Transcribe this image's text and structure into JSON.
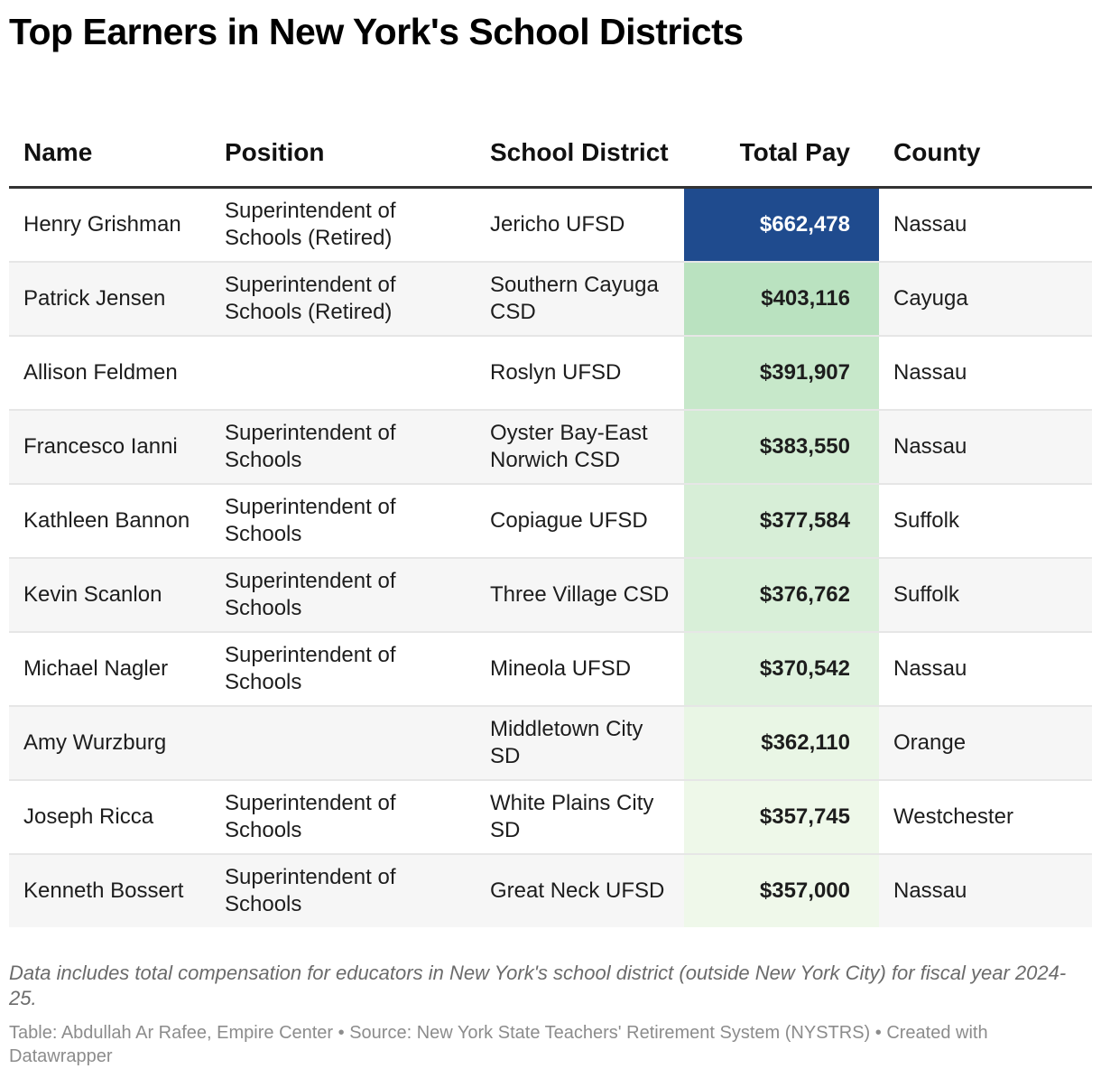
{
  "chart_data": {
    "type": "table",
    "title": "Top Earners in New York's School Districts",
    "columns": [
      "Name",
      "Position",
      "School District",
      "Total Pay",
      "County"
    ],
    "rows": [
      {
        "name": "Henry Grishman",
        "position": "Superintendent of Schools (Retired)",
        "district": "Jericho UFSD",
        "pay": 662478,
        "pay_label": "$662,478",
        "county": "Nassau"
      },
      {
        "name": "Patrick Jensen",
        "position": "Superintendent of Schools (Retired)",
        "district": "Southern Cayuga CSD",
        "pay": 403116,
        "pay_label": "$403,116",
        "county": "Cayuga"
      },
      {
        "name": "Allison Feldmen",
        "position": "",
        "district": "Roslyn UFSD",
        "pay": 391907,
        "pay_label": "$391,907",
        "county": "Nassau"
      },
      {
        "name": "Francesco Ianni",
        "position": "Superintendent of Schools",
        "district": "Oyster Bay-East Norwich CSD",
        "pay": 383550,
        "pay_label": "$383,550",
        "county": "Nassau"
      },
      {
        "name": "Kathleen Bannon",
        "position": "Superintendent of Schools",
        "district": "Copiague UFSD",
        "pay": 377584,
        "pay_label": "$377,584",
        "county": "Suffolk"
      },
      {
        "name": "Kevin Scanlon",
        "position": "Superintendent of Schools",
        "district": "Three Village CSD",
        "pay": 376762,
        "pay_label": "$376,762",
        "county": "Suffolk"
      },
      {
        "name": "Michael Nagler",
        "position": "Superintendent of Schools",
        "district": "Mineola UFSD",
        "pay": 370542,
        "pay_label": "$370,542",
        "county": "Nassau"
      },
      {
        "name": "Amy Wurzburg",
        "position": "",
        "district": "Middletown City SD",
        "pay": 362110,
        "pay_label": "$362,110",
        "county": "Orange"
      },
      {
        "name": "Joseph Ricca",
        "position": "Superintendent of Schools",
        "district": "White Plains City SD",
        "pay": 357745,
        "pay_label": "$357,745",
        "county": "Westchester"
      },
      {
        "name": "Kenneth Bossert",
        "position": "Superintendent of Schools",
        "district": "Great Neck UFSD",
        "pay": 357000,
        "pay_label": "$357,000",
        "county": "Nassau"
      }
    ],
    "heat_scale": {
      "column": "Total Pay",
      "colors": [
        "#eff8ea",
        "#b7e1bd",
        "#1f4b8e"
      ]
    },
    "notes": "Data includes total compensation for educators in New York's school district (outside New York City) for fiscal year 2024-25.",
    "footer": "Table: Abdullah Ar Rafee, Empire Center • Source: New York State Teachers' Retirement System (NYSTRS) • Created with Datawrapper"
  }
}
